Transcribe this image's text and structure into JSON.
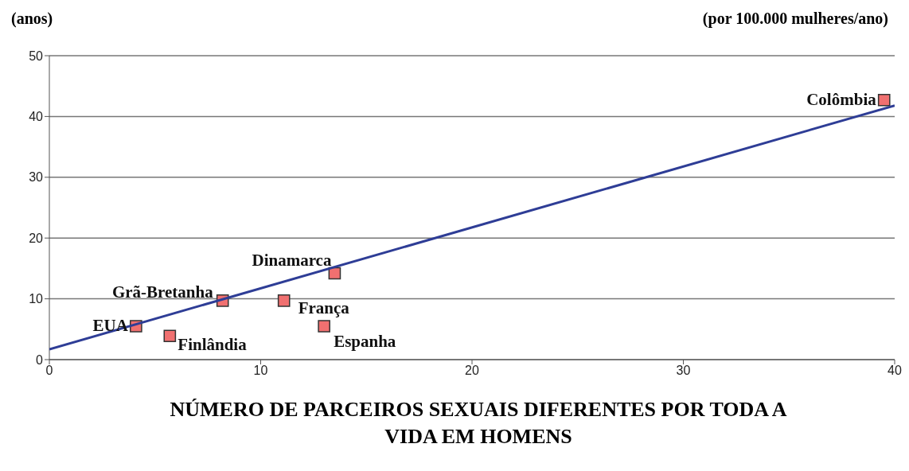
{
  "chart_data": {
    "type": "scatter",
    "ylabel": "(anos)",
    "xlabel": "NÚMERO DE PARCEIROS SEXUAIS DIFERENTES POR TODA A VIDA EM HOMENS",
    "xlim": [
      0,
      40
    ],
    "xticks": [
      0,
      10,
      20,
      30,
      40
    ],
    "ylim": [
      0,
      50
    ],
    "yticks": [
      0,
      10,
      20,
      30,
      40,
      50
    ],
    "grid": "y",
    "series": [
      {
        "type": "scatter",
        "color": "#f07070",
        "marker": "square",
        "x": [
          39.5,
          13.5,
          8.2,
          11.1,
          4.1,
          5.7,
          13.0
        ],
        "values": [
          42.7,
          14.2,
          9.7,
          9.7,
          5.5,
          3.9,
          5.5
        ]
      },
      {
        "type": "line",
        "color": "#2e3d96",
        "line_style": "solid",
        "marker": "none",
        "x": [
          0,
          40
        ],
        "values": [
          1.7,
          41.8
        ]
      }
    ],
    "annotations": [
      "(por 100.000 mulheres/ano)",
      {
        "text": "Colômbia",
        "x": 39.5,
        "y": 42.7
      },
      {
        "text": "Dinamarca",
        "x": 13.5,
        "y": 14.2
      },
      {
        "text": "Grã-Bretanha",
        "x": 8.2,
        "y": 9.7
      },
      {
        "text": "França",
        "x": 11.1,
        "y": 9.7
      },
      {
        "text": "EUA",
        "x": 4.1,
        "y": 5.5
      },
      {
        "text": "Finlândia",
        "x": 5.7,
        "y": 3.9
      },
      {
        "text": "Espanha",
        "x": 13.0,
        "y": 5.5
      }
    ]
  }
}
